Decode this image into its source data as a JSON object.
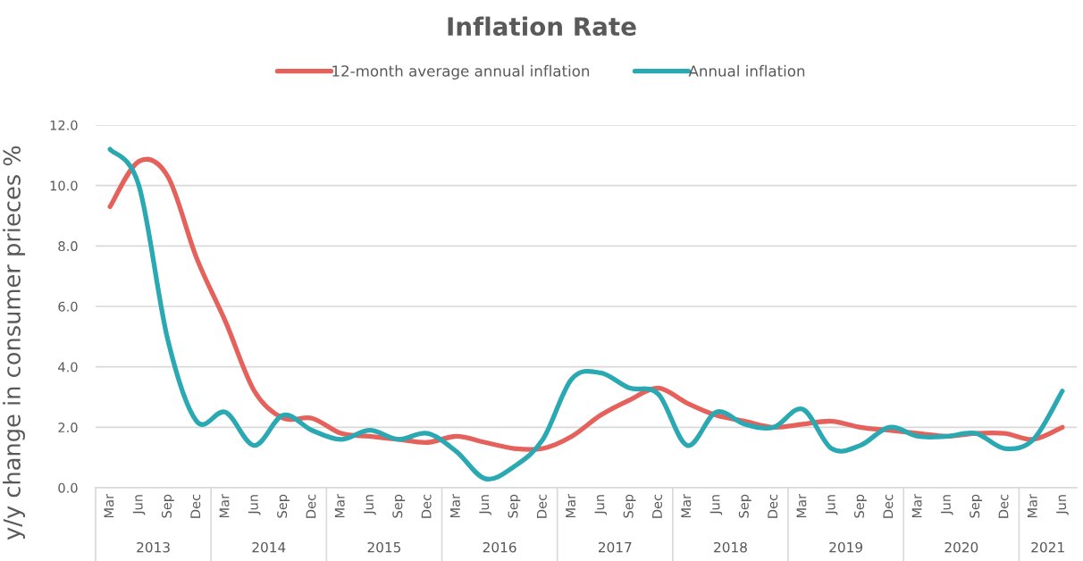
{
  "chart_data": {
    "type": "line",
    "title": "Inflation Rate",
    "ylabel": "y/y change in consumer prieces %",
    "categories": [
      "Mar",
      "Jun",
      "Sep",
      "Dec",
      "Mar",
      "Jun",
      "Sep",
      "Dec",
      "Mar",
      "Jun",
      "Sep",
      "Dec",
      "Mar",
      "Jun",
      "Sep",
      "Dec",
      "Mar",
      "Jun",
      "Sep",
      "Dec",
      "Mar",
      "Jun",
      "Sep",
      "Dec",
      "Mar",
      "Jun",
      "Sep",
      "Dec",
      "Mar",
      "Jun",
      "Sep",
      "Dec",
      "Mar",
      "Jun"
    ],
    "series": [
      {
        "name": "12-month average annual inflation",
        "color": "#e5625c",
        "values": [
          9.3,
          10.8,
          10.3,
          7.6,
          5.5,
          3.2,
          2.3,
          2.3,
          1.8,
          1.7,
          1.6,
          1.5,
          1.7,
          1.5,
          1.3,
          1.3,
          1.7,
          2.4,
          2.9,
          3.3,
          2.8,
          2.4,
          2.2,
          2.0,
          2.1,
          2.2,
          2.0,
          1.9,
          1.8,
          1.7,
          1.8,
          1.8,
          1.6,
          2.0
        ]
      },
      {
        "name": "Annual inflation",
        "color": "#2ba9b2",
        "values": [
          11.2,
          10.0,
          4.9,
          2.2,
          2.5,
          1.4,
          2.4,
          1.9,
          1.6,
          1.9,
          1.6,
          1.8,
          1.2,
          0.3,
          0.7,
          1.6,
          3.6,
          3.8,
          3.3,
          3.1,
          1.4,
          2.5,
          2.1,
          2.0,
          2.6,
          1.3,
          1.4,
          2.0,
          1.7,
          1.7,
          1.8,
          1.3,
          1.6,
          3.2
        ]
      }
    ],
    "ylim": [
      0,
      12
    ],
    "yticks": [
      {
        "value": 0,
        "label": "0.0"
      },
      {
        "value": 2,
        "label": "2.0"
      },
      {
        "value": 4,
        "label": "4.0"
      },
      {
        "value": 6,
        "label": "6.0"
      },
      {
        "value": 8,
        "label": "8.0"
      },
      {
        "value": 10,
        "label": "10.0"
      },
      {
        "value": 12,
        "label": "12.0"
      }
    ],
    "grid": "y",
    "legend": "top",
    "line_style": "solid",
    "annotations": [
      "2013",
      "2014",
      "2015",
      "2016",
      "2017",
      "2018",
      "2019",
      "2020",
      "2021"
    ]
  }
}
